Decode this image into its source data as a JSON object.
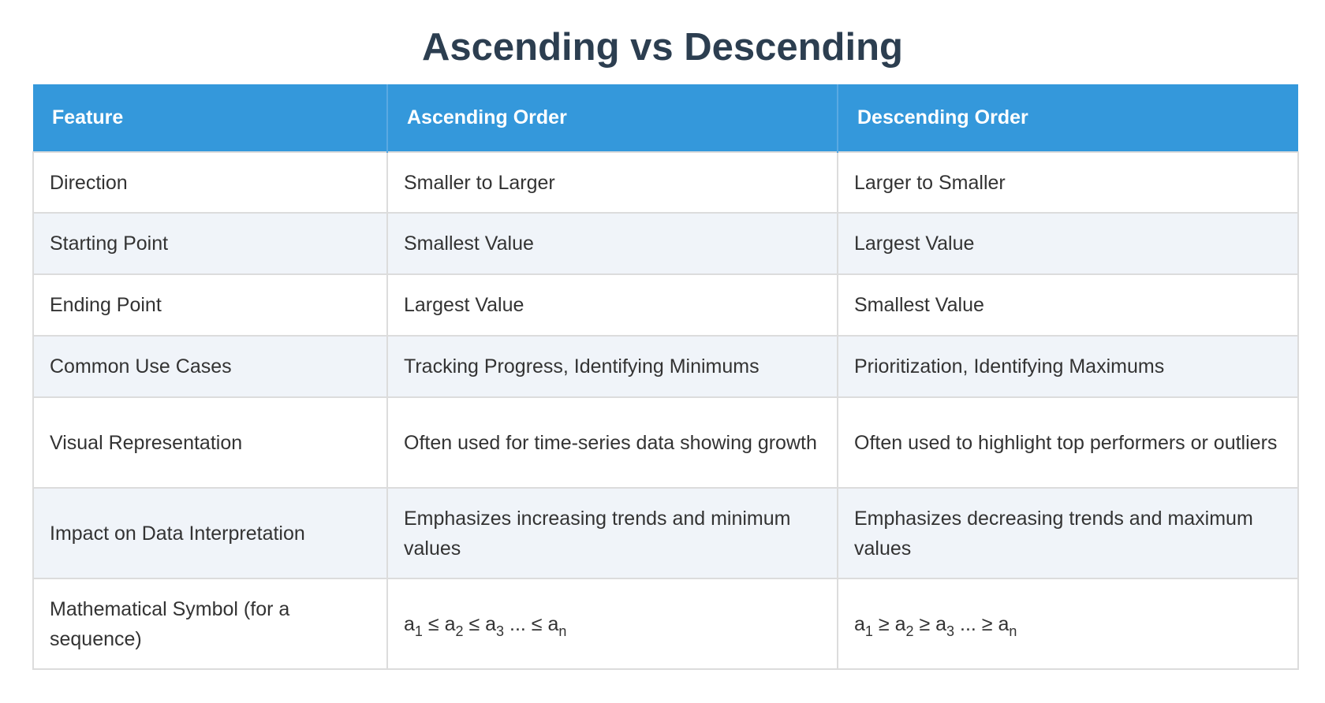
{
  "title": "Ascending vs Descending",
  "table": {
    "headers": [
      "Feature",
      "Ascending Order",
      "Descending Order"
    ],
    "rows": [
      {
        "feature": "Direction",
        "ascending": "Smaller to Larger",
        "descending": "Larger to Smaller"
      },
      {
        "feature": "Starting Point",
        "ascending": "Smallest Value",
        "descending": "Largest Value"
      },
      {
        "feature": "Ending Point",
        "ascending": "Largest Value",
        "descending": "Smallest Value"
      },
      {
        "feature": "Common Use Cases",
        "ascending": "Tracking Progress, Identifying Minimums",
        "descending": "Prioritization, Identifying Maximums"
      },
      {
        "feature": "Visual Representation",
        "ascending": "Often used for time-series data showing growth",
        "descending": "Often used to highlight top performers or outliers"
      },
      {
        "feature": "Impact on Data Interpretation",
        "ascending": "Emphasizes increasing trends and minimum values",
        "descending": "Emphasizes decreasing trends and maximum values"
      },
      {
        "feature": "Mathematical Symbol (for a sequence)",
        "ascending_math": {
          "a": "a",
          "s1": "1",
          "op1": "≤",
          "s2": "2",
          "op2": "≤",
          "s3": "3",
          "dots": "...",
          "op3": "≤",
          "sn": "n"
        },
        "descending_math": {
          "a": "a",
          "s1": "1",
          "op1": "≥",
          "s2": "2",
          "op2": "≥",
          "s3": "3",
          "dots": "...",
          "op3": "≥",
          "sn": "n"
        }
      }
    ]
  },
  "colors": {
    "header_bg": "#3498db",
    "title": "#2c3e50",
    "row_alt_bg": "#f0f4f9",
    "border": "#dcdcdc"
  }
}
